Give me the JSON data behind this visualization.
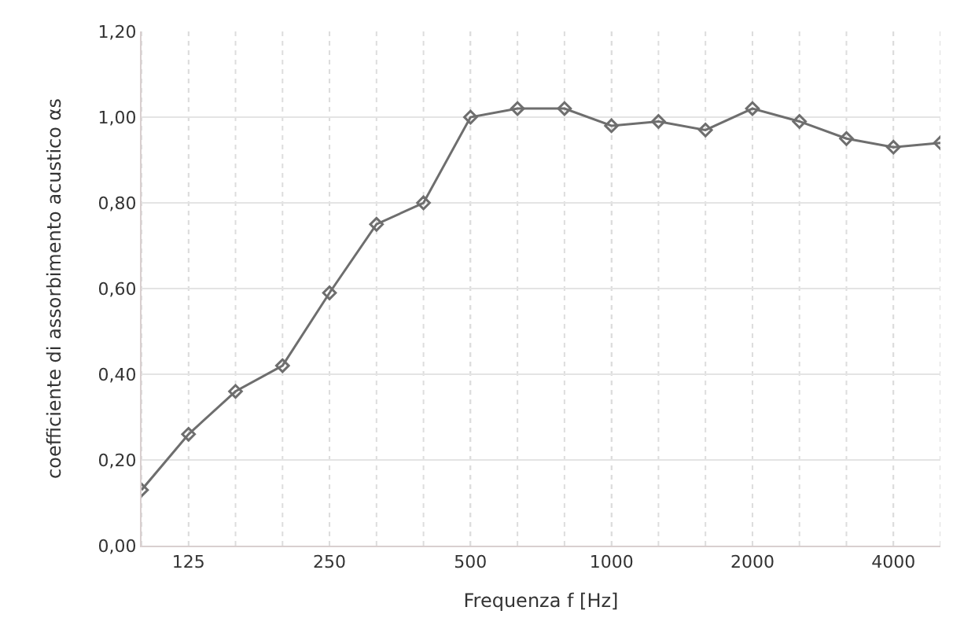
{
  "chart_data": {
    "type": "line",
    "xlabel": "Frequenza f [Hz]",
    "ylabel": "coefficiente di assorbimento acustico αs",
    "categories": [
      null,
      "125",
      null,
      null,
      "250",
      null,
      null,
      "500",
      null,
      null,
      "1000",
      null,
      null,
      "2000",
      null,
      null,
      "4000",
      null
    ],
    "series": [
      {
        "color": "#6e6e6e",
        "values": [
          0.13,
          0.26,
          0.36,
          0.42,
          0.59,
          0.75,
          0.8,
          1.0,
          1.02,
          1.02,
          0.98,
          0.99,
          0.97,
          1.02,
          0.99,
          0.95,
          0.93,
          0.94
        ]
      }
    ],
    "ylim": [
      0,
      1.2
    ],
    "yticks": [
      {
        "value": 0,
        "label": "0,00"
      },
      {
        "value": 0.2,
        "label": "0,20"
      },
      {
        "value": 0.4,
        "label": "0,40"
      },
      {
        "value": 0.6,
        "label": "0,60"
      },
      {
        "value": 0.8,
        "label": "0,80"
      },
      {
        "value": 1,
        "label": "1,00"
      },
      {
        "value": 1.2,
        "label": "1,20"
      }
    ],
    "grid": true,
    "marker": "diamond",
    "line_style": "solid"
  }
}
